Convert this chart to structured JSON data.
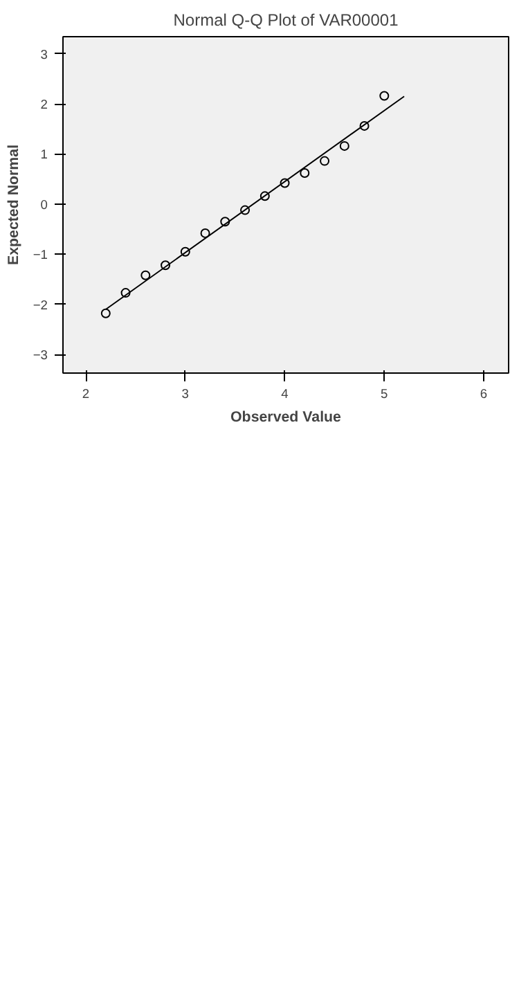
{
  "chart_data": {
    "type": "scatter",
    "title": "Normal Q-Q Plot of VAR00001",
    "xlabel": "Observed Value",
    "ylabel": "Expected Normal",
    "xlim": [
      1.77,
      6.25
    ],
    "ylim": [
      -3.37,
      3.34
    ],
    "xticks": [
      2,
      3,
      4,
      5,
      6
    ],
    "yticks": [
      -3,
      -2,
      -1,
      0,
      1,
      2,
      3
    ],
    "grid": false,
    "series": [
      {
        "marker": "circle",
        "color": "#000000",
        "x": [
          2.2,
          2.4,
          2.6,
          2.8,
          3.0,
          3.2,
          3.4,
          3.6,
          3.8,
          4.0,
          4.2,
          4.4,
          4.6,
          4.8,
          5.0
        ],
        "values": [
          -2.18,
          -1.77,
          -1.42,
          -1.22,
          -0.95,
          -0.58,
          -0.35,
          -0.12,
          0.16,
          0.42,
          0.62,
          0.86,
          1.16,
          1.56,
          2.16
        ]
      },
      {
        "type": "line",
        "marker": "none",
        "color": "#000000",
        "x": [
          2.2,
          5.2
        ],
        "values": [
          -2.1,
          2.15
        ]
      }
    ]
  }
}
